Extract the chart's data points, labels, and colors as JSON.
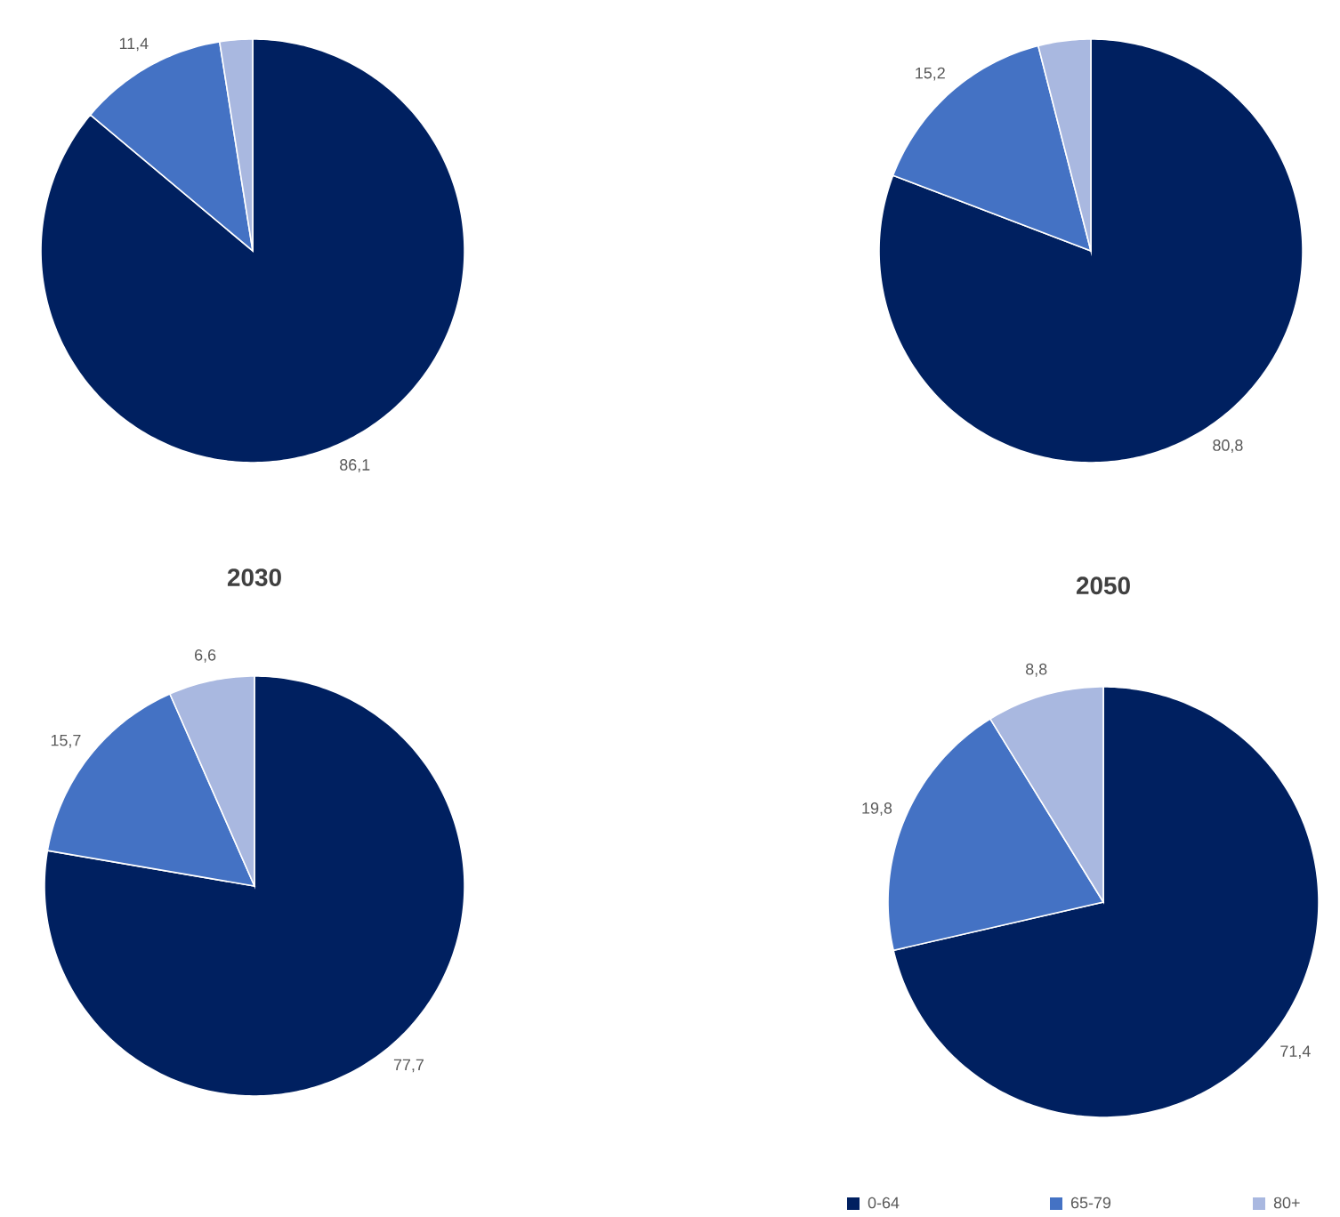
{
  "chart_data": [
    {
      "type": "pie",
      "categories": [
        null,
        null,
        null
      ],
      "values": [
        86.1,
        11.4,
        2.5
      ],
      "value_labels": [
        "86,1",
        "11,4",
        null
      ],
      "colors": [
        "#002060",
        "#4472c4",
        "#a9b8e0"
      ]
    },
    {
      "type": "pie",
      "categories": [
        null,
        null,
        null
      ],
      "values": [
        80.8,
        15.2,
        4.0
      ],
      "value_labels": [
        "80,8",
        "15,2",
        null
      ],
      "colors": [
        "#002060",
        "#4472c4",
        "#a9b8e0"
      ]
    },
    {
      "type": "pie",
      "title": "2030",
      "categories": [
        null,
        null,
        null
      ],
      "values": [
        77.7,
        15.7,
        6.6
      ],
      "value_labels": [
        "77,7",
        "15,7",
        "6,6"
      ],
      "colors": [
        "#002060",
        "#4472c4",
        "#a9b8e0"
      ]
    },
    {
      "type": "pie",
      "title": "2050",
      "categories": [
        "0-64",
        "65-79",
        "80+"
      ],
      "values": [
        71.4,
        19.8,
        8.8
      ],
      "value_labels": [
        "71,4",
        "19,8",
        "8,8"
      ],
      "colors": [
        "#002060",
        "#4472c4",
        "#a9b8e0"
      ],
      "legend": "bottom"
    }
  ]
}
